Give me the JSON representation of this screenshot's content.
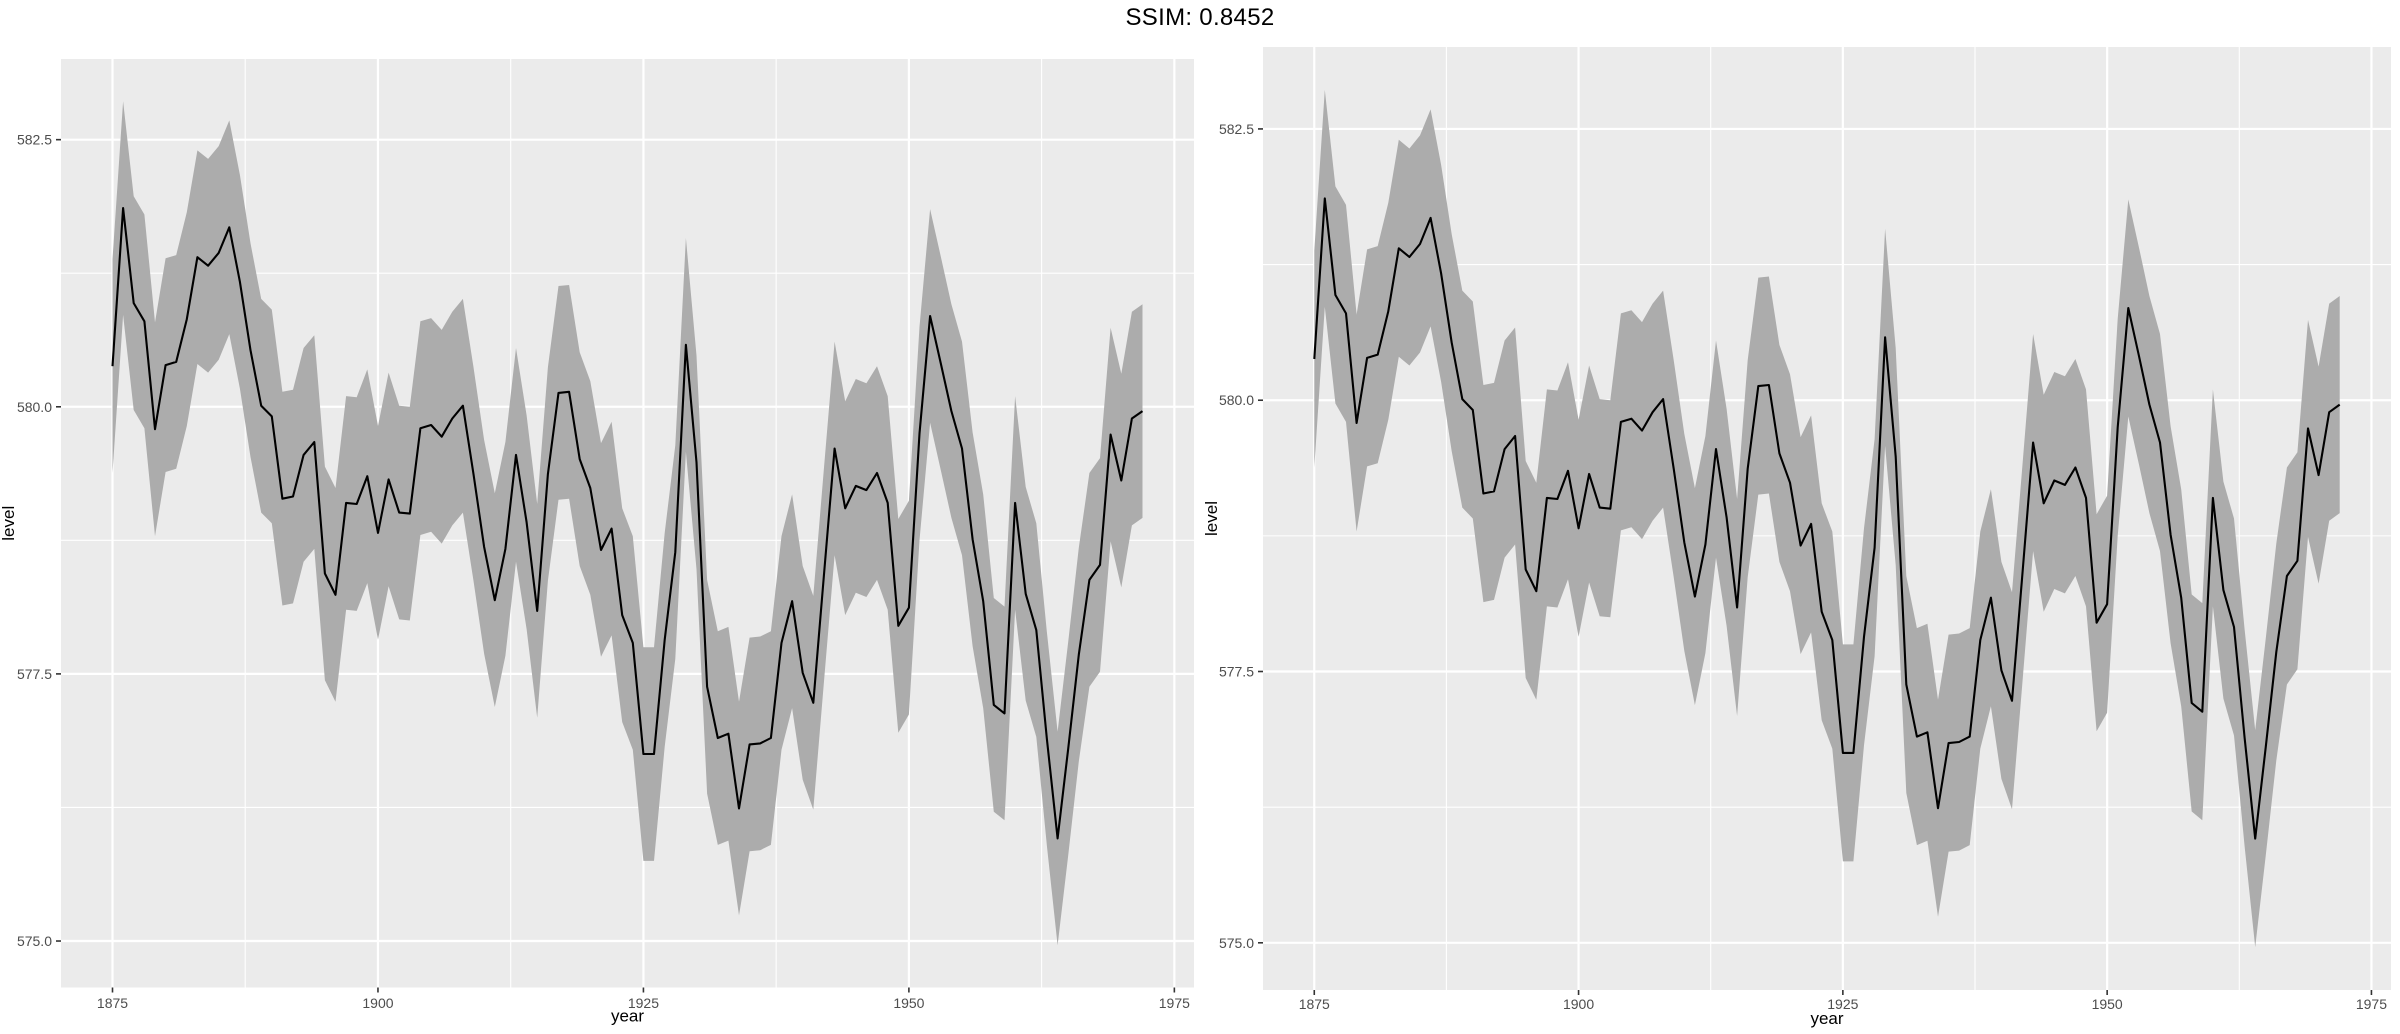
{
  "title": "SSIM: 0.8452",
  "colors": {
    "page_background": "#ffffff",
    "panel_background": "#ebebeb",
    "grid_major": "#ffffff",
    "grid_minor": "#ffffff",
    "ribbon_fill": "#acacac",
    "line_stroke": "#000000",
    "tick_mark": "#333333",
    "tick_label": "#4d4d4d",
    "axis_title": "#000000"
  },
  "chart_data": [
    {
      "id": "left",
      "type": "area",
      "title": "",
      "xlabel": "year",
      "ylabel": "level",
      "x_start": 1875,
      "x_end": 1972,
      "ribbon_halfwidth": 1.0,
      "series": [
        {
          "name": "level",
          "values": [
            580.38,
            581.86,
            580.97,
            580.8,
            579.79,
            580.39,
            580.42,
            580.82,
            581.4,
            581.32,
            581.44,
            581.68,
            581.17,
            580.53,
            580.01,
            579.91,
            579.14,
            579.16,
            579.55,
            579.67,
            578.44,
            578.24,
            579.1,
            579.09,
            579.35,
            578.82,
            579.32,
            579.01,
            579.0,
            579.8,
            579.83,
            579.72,
            579.89,
            580.01,
            579.37,
            578.69,
            578.19,
            578.67,
            579.55,
            578.92,
            578.09,
            579.37,
            580.13,
            580.14,
            579.51,
            579.24,
            578.66,
            578.86,
            578.05,
            577.79,
            576.75,
            576.75,
            577.82,
            578.64,
            580.58,
            579.48,
            577.38,
            576.9,
            576.94,
            576.24,
            576.84,
            576.85,
            576.9,
            577.79,
            578.18,
            577.51,
            577.23,
            578.42,
            579.61,
            579.05,
            579.26,
            579.22,
            579.38,
            579.1,
            577.95,
            578.12,
            579.75,
            580.85,
            580.41,
            579.96,
            579.61,
            578.76,
            578.18,
            577.21,
            577.13,
            579.1,
            578.25,
            577.91,
            576.89,
            575.96,
            576.8,
            577.68,
            578.38,
            578.52,
            579.74,
            579.31,
            579.89,
            579.96
          ]
        }
      ],
      "x_ticks": [
        1875,
        1900,
        1925,
        1950,
        1975
      ],
      "x_tick_labels": [
        "1875",
        "1900",
        "1925",
        "1950",
        "1975"
      ],
      "y_ticks": [
        575.0,
        577.5,
        580.0,
        582.5
      ],
      "y_tick_labels": [
        "575.0",
        "577.5",
        "580.0",
        "582.5"
      ],
      "xlim": [
        1870.15,
        1976.85
      ],
      "ylim": [
        574.565,
        583.255
      ],
      "grid": true,
      "legend": "none"
    },
    {
      "id": "right",
      "type": "area",
      "title": "",
      "xlabel": "year",
      "ylabel": "level",
      "x_start": 1875,
      "x_end": 1972,
      "ribbon_halfwidth": 1.0,
      "series": [
        {
          "name": "level",
          "values": [
            580.38,
            581.86,
            580.97,
            580.8,
            579.79,
            580.39,
            580.42,
            580.82,
            581.4,
            581.32,
            581.44,
            581.68,
            581.17,
            580.53,
            580.01,
            579.91,
            579.14,
            579.16,
            579.55,
            579.67,
            578.44,
            578.24,
            579.1,
            579.09,
            579.35,
            578.82,
            579.32,
            579.01,
            579.0,
            579.8,
            579.83,
            579.72,
            579.89,
            580.01,
            579.37,
            578.69,
            578.19,
            578.67,
            579.55,
            578.92,
            578.09,
            579.37,
            580.13,
            580.14,
            579.51,
            579.24,
            578.66,
            578.86,
            578.05,
            577.79,
            576.75,
            576.75,
            577.82,
            578.64,
            580.58,
            579.48,
            577.38,
            576.9,
            576.94,
            576.24,
            576.84,
            576.85,
            576.9,
            577.79,
            578.18,
            577.51,
            577.23,
            578.42,
            579.61,
            579.05,
            579.26,
            579.22,
            579.38,
            579.1,
            577.95,
            578.12,
            579.75,
            580.85,
            580.41,
            579.96,
            579.61,
            578.76,
            578.18,
            577.21,
            577.13,
            579.1,
            578.25,
            577.91,
            576.89,
            575.96,
            576.8,
            577.68,
            578.38,
            578.52,
            579.74,
            579.31,
            579.89,
            579.96
          ]
        }
      ],
      "x_ticks": [
        1875,
        1900,
        1925,
        1950,
        1975
      ],
      "x_tick_labels": [
        "1875",
        "1900",
        "1925",
        "1950",
        "1975"
      ],
      "y_ticks": [
        575.0,
        577.5,
        580.0,
        582.5
      ],
      "y_tick_labels": [
        "575.0",
        "577.5",
        "580.0",
        "582.5"
      ],
      "xlim": [
        1870.15,
        1976.85
      ],
      "ylim": [
        574.565,
        583.255
      ],
      "grid": true,
      "legend": "none"
    }
  ]
}
